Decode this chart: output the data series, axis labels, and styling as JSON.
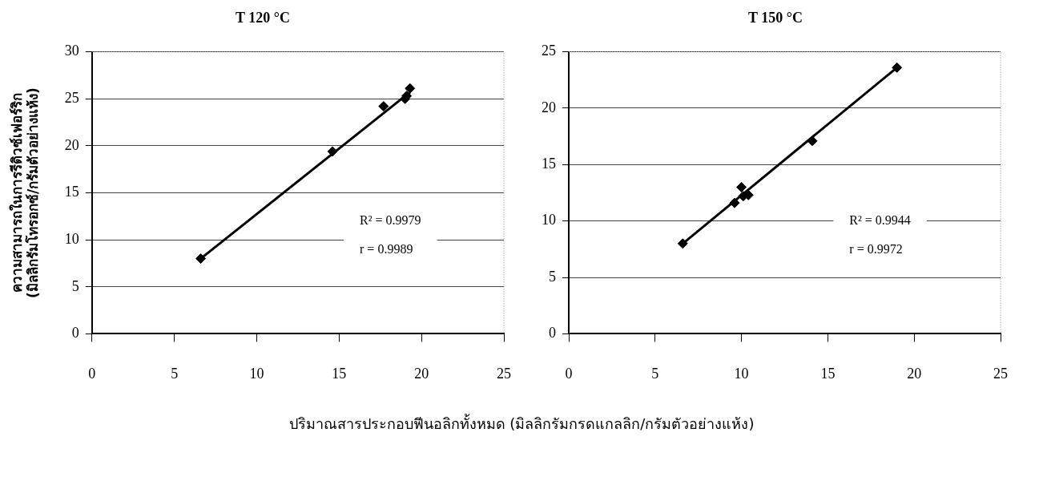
{
  "chart_data": [
    {
      "type": "scatter",
      "title": "T 120 °C",
      "ylabel": "ความสามารถในการรีดิวซ์เฟอร์ริก\n(มิลลิกรัมโทรอกซ์/กรัมตัวอย่างแห้ง)",
      "xlabel": "ปริมาณสารประกอบฟีนอลิกทั้งหมด (มิลลิกรัมกรดแกลลิก/กรัมตัวอย่างแห้ง)",
      "xlim": [
        0,
        25
      ],
      "xticks": [
        0,
        5,
        10,
        15,
        20,
        25
      ],
      "ylim": [
        0,
        30
      ],
      "yticks": [
        0,
        5,
        10,
        15,
        20,
        25,
        30
      ],
      "grid": "y",
      "legend": false,
      "series": [
        {
          "type": "scatter",
          "color": "#000000",
          "marker": "diamond",
          "x": [
            6.6,
            14.6,
            17.7,
            19.0,
            19.1,
            19.3
          ],
          "values": [
            8.0,
            19.4,
            24.2,
            25.0,
            25.3,
            26.1
          ]
        },
        {
          "type": "line",
          "color": "#000000",
          "marker": "none",
          "line_style": "solid",
          "x": [
            6.6,
            19.3
          ],
          "values": [
            8.0,
            25.7
          ]
        }
      ],
      "annotations": [
        "R² = 0.9979",
        "r = 0.9989"
      ]
    },
    {
      "type": "scatter",
      "title": "T 150 °C",
      "xlim": [
        0,
        25
      ],
      "xticks": [
        0,
        5,
        10,
        15,
        20,
        25
      ],
      "ylim": [
        0,
        25
      ],
      "yticks": [
        0,
        5,
        10,
        15,
        20,
        25
      ],
      "grid": "y",
      "legend": false,
      "series": [
        {
          "type": "scatter",
          "color": "#000000",
          "marker": "diamond",
          "x": [
            6.6,
            9.6,
            10.0,
            10.1,
            10.4,
            14.1,
            19.0
          ],
          "values": [
            8.0,
            11.6,
            13.0,
            12.2,
            12.3,
            17.1,
            23.6
          ]
        },
        {
          "type": "line",
          "color": "#000000",
          "marker": "none",
          "line_style": "solid",
          "x": [
            6.6,
            19.0
          ],
          "values": [
            8.0,
            23.6
          ]
        }
      ],
      "annotations": [
        "R² = 0.9944",
        "r = 0.9972"
      ]
    }
  ]
}
